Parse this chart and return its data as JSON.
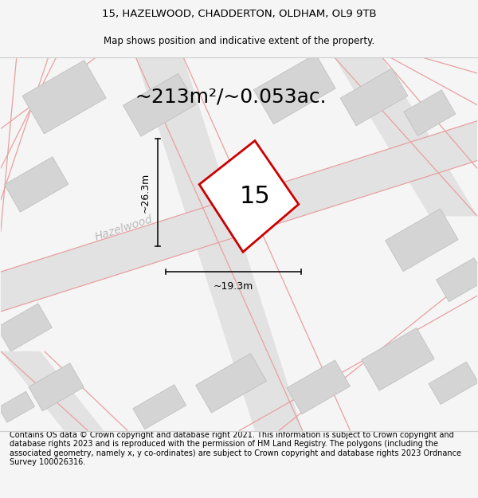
{
  "title_line1": "15, HAZELWOOD, CHADDERTON, OLDHAM, OL9 9TB",
  "title_line2": "Map shows position and indicative extent of the property.",
  "footer_text": "Contains OS data © Crown copyright and database right 2021. This information is subject to Crown copyright and database rights 2023 and is reproduced with the permission of HM Land Registry. The polygons (including the associated geometry, namely x, y co-ordinates) are subject to Crown copyright and database rights 2023 Ordnance Survey 100026316.",
  "area_label": "~213m²/~0.053ac.",
  "width_label": "~19.3m",
  "height_label": "~26.3m",
  "plot_number": "15",
  "street_name": "Hazelwood",
  "bg_color": "#f5f5f5",
  "map_bg": "#ffffff",
  "road_fill": "#e2e2e2",
  "building_fill": "#d4d4d4",
  "road_line_color": "#e8a0a0",
  "property_color": "#cc0000",
  "dim_line_color": "#111111",
  "title_fontsize": 9.5,
  "subtitle_fontsize": 8.5,
  "footer_fontsize": 7.0,
  "area_fontsize": 18,
  "dim_fontsize": 9,
  "plot_num_fontsize": 22,
  "street_fontsize": 10,
  "street_color": "#bbbbbb"
}
